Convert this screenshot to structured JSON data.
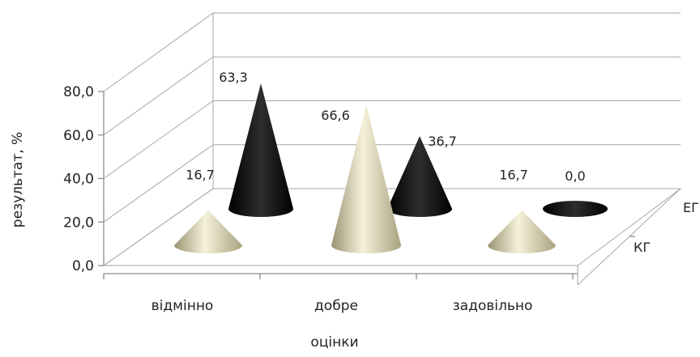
{
  "chart_data": {
    "type": "bar",
    "subtype": "3d-cone",
    "title": "",
    "xlabel": "оцінки",
    "ylabel": "результат, %",
    "categories": [
      "відмінно",
      "добре",
      "задовільно"
    ],
    "ylim": [
      0,
      80
    ],
    "yticks": [
      "0,0",
      "20,0",
      "40,0",
      "60,0",
      "80,0"
    ],
    "grid": true,
    "series": [
      {
        "name": "КГ",
        "color": "#d8d2ad",
        "values": [
          16.7,
          66.6,
          16.7
        ],
        "labels": [
          "16,7",
          "66,6",
          "16,7"
        ]
      },
      {
        "name": "ЕГ",
        "color": "#111111",
        "values": [
          63.3,
          36.7,
          0.0
        ],
        "labels": [
          "63,3",
          "36,7",
          "0,0"
        ]
      }
    ]
  }
}
